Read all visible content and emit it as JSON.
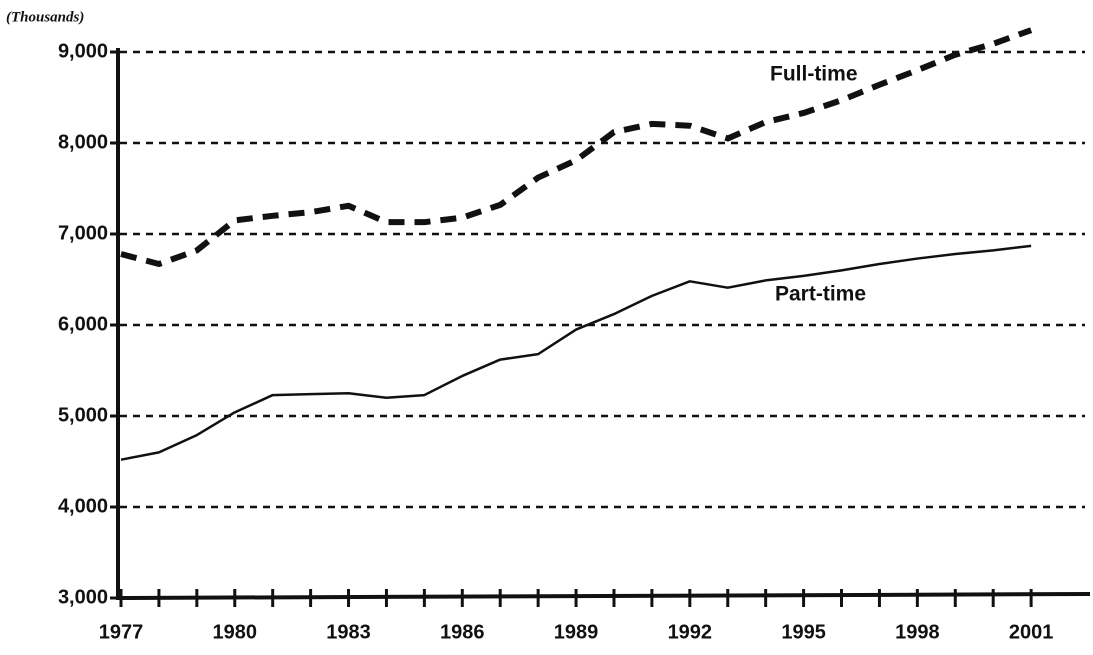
{
  "chart_data": {
    "type": "line",
    "y_label": "(Thousands)",
    "x": [
      1977,
      1978,
      1979,
      1980,
      1981,
      1982,
      1983,
      1984,
      1985,
      1986,
      1987,
      1988,
      1989,
      1990,
      1991,
      1992,
      1993,
      1994,
      1995,
      1996,
      1997,
      1998,
      1999,
      2000,
      2001
    ],
    "series": [
      {
        "name": "Full-time",
        "color": "#111111",
        "dash": true,
        "values": [
          6780,
          6670,
          6820,
          7150,
          7200,
          7240,
          7310,
          7130,
          7130,
          7180,
          7320,
          7620,
          7810,
          8120,
          8210,
          8190,
          8050,
          8230,
          8330,
          8470,
          8640,
          8800,
          8970,
          9090,
          9240
        ]
      },
      {
        "name": "Part-time",
        "color": "#111111",
        "dash": false,
        "values": [
          4520,
          4600,
          4790,
          5040,
          5230,
          5240,
          5250,
          5200,
          5230,
          5440,
          5620,
          5680,
          5950,
          6120,
          6320,
          6480,
          6410,
          6490,
          6540,
          6600,
          6670,
          6730,
          6780,
          6820,
          6870
        ]
      }
    ],
    "xlim": [
      1977,
      2002.5
    ],
    "xticks": [
      1977,
      1980,
      1983,
      1986,
      1989,
      1992,
      1995,
      1998,
      2001
    ],
    "ylim": [
      3000,
      9000
    ],
    "yticks": [
      {
        "value": 3000,
        "label": "3,000"
      },
      {
        "value": 4000,
        "label": "4,000"
      },
      {
        "value": 5000,
        "label": "5,000"
      },
      {
        "value": 6000,
        "label": "6,000"
      },
      {
        "value": 7000,
        "label": "7,000"
      },
      {
        "value": 8000,
        "label": "8,000"
      },
      {
        "value": 9000,
        "label": "9,000"
      }
    ],
    "grid": true
  }
}
